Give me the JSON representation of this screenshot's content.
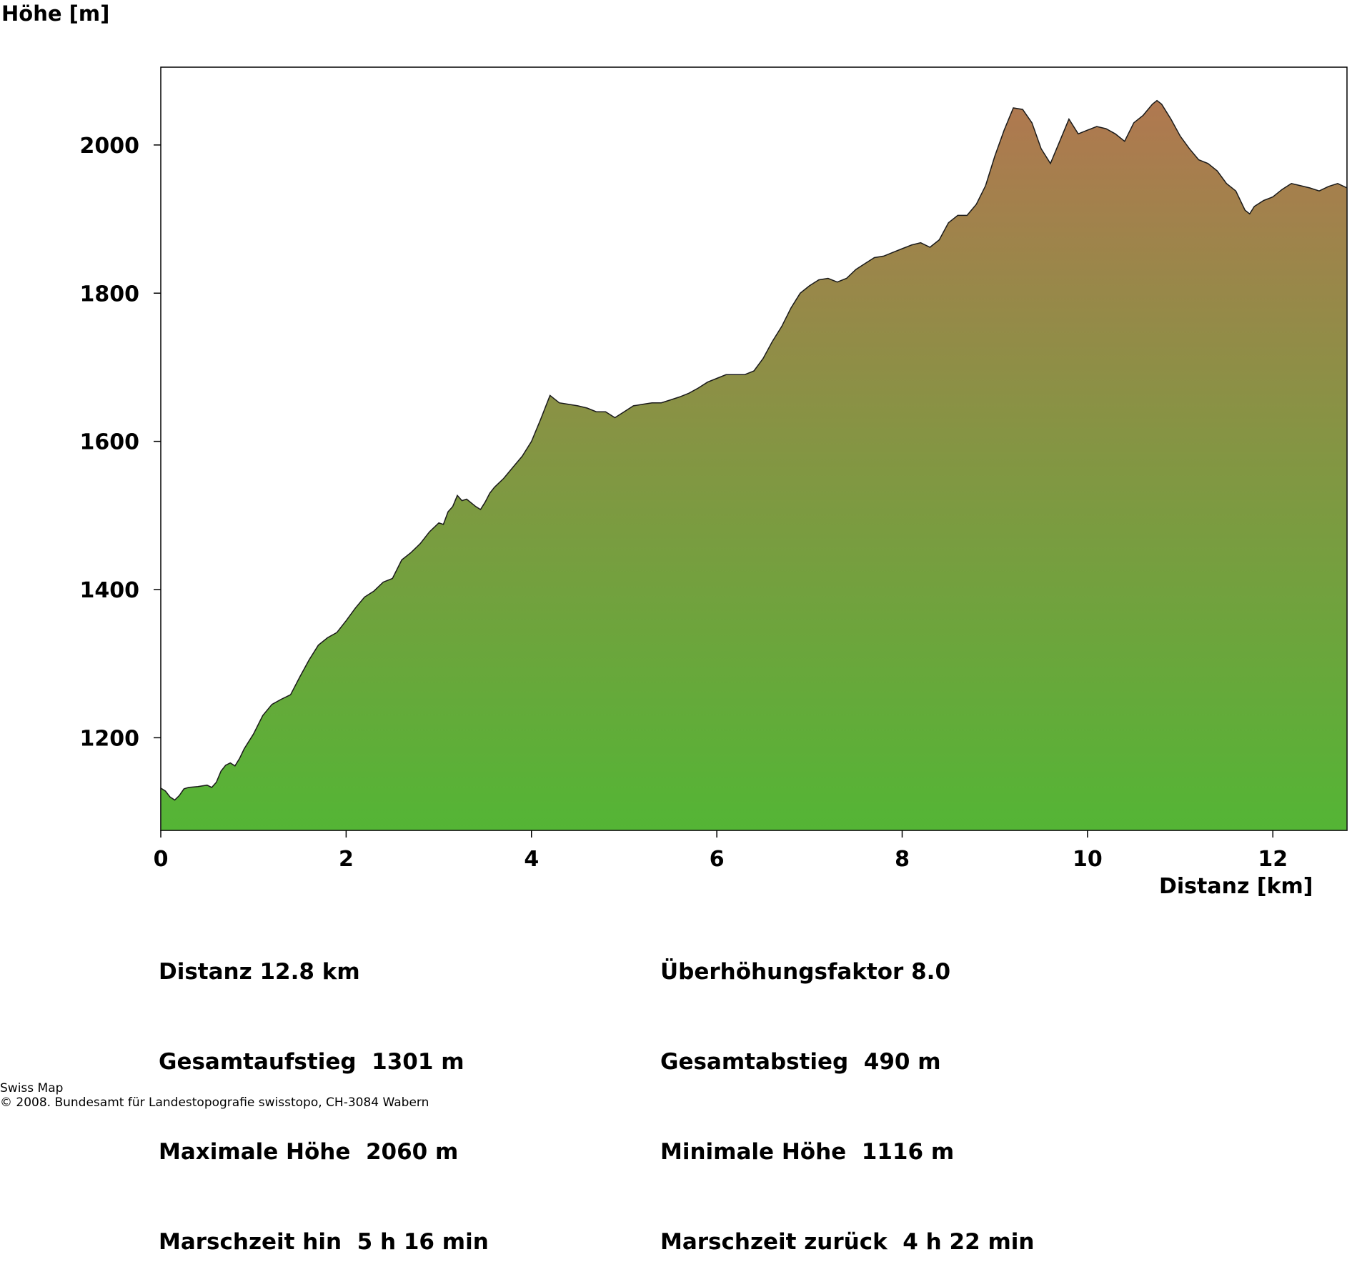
{
  "chart_data": {
    "type": "area",
    "ylabel": "Höhe [m]",
    "xlabel": "Distanz [km]",
    "xlim": [
      0,
      12.8
    ],
    "ylim": [
      1075,
      2105
    ],
    "x_ticks": [
      0,
      2,
      4,
      6,
      8,
      10,
      12
    ],
    "y_ticks": [
      1200,
      1400,
      1600,
      1800,
      2000
    ],
    "fill_gradient": {
      "top": "#b07850",
      "bottom": "#54b535"
    },
    "series": [
      {
        "x": [
          0,
          0.05,
          0.1,
          0.15,
          0.2,
          0.25,
          0.3,
          0.4,
          0.5,
          0.55,
          0.6,
          0.65,
          0.7,
          0.75,
          0.8,
          0.85,
          0.9,
          1.0,
          1.1,
          1.2,
          1.3,
          1.4,
          1.5,
          1.6,
          1.7,
          1.8,
          1.9,
          2.0,
          2.1,
          2.2,
          2.3,
          2.4,
          2.5,
          2.6,
          2.7,
          2.8,
          2.9,
          3.0,
          3.05,
          3.1,
          3.15,
          3.2,
          3.25,
          3.3,
          3.4,
          3.45,
          3.5,
          3.55,
          3.6,
          3.7,
          3.8,
          3.9,
          4.0,
          4.1,
          4.2,
          4.3,
          4.4,
          4.5,
          4.6,
          4.7,
          4.8,
          4.9,
          5.0,
          5.1,
          5.2,
          5.3,
          5.4,
          5.5,
          5.6,
          5.7,
          5.8,
          5.9,
          6.0,
          6.1,
          6.2,
          6.3,
          6.4,
          6.5,
          6.6,
          6.7,
          6.8,
          6.9,
          7.0,
          7.1,
          7.2,
          7.3,
          7.4,
          7.5,
          7.6,
          7.7,
          7.8,
          7.9,
          8.0,
          8.1,
          8.2,
          8.3,
          8.4,
          8.5,
          8.6,
          8.7,
          8.8,
          8.9,
          9.0,
          9.1,
          9.2,
          9.3,
          9.4,
          9.5,
          9.6,
          9.7,
          9.8,
          9.9,
          10.0,
          10.1,
          10.2,
          10.3,
          10.4,
          10.5,
          10.6,
          10.7,
          10.75,
          10.8,
          10.9,
          11.0,
          11.1,
          11.2,
          11.3,
          11.4,
          11.5,
          11.6,
          11.7,
          11.75,
          11.8,
          11.9,
          12.0,
          12.1,
          12.2,
          12.3,
          12.4,
          12.5,
          12.6,
          12.7,
          12.8
        ],
        "y": [
          1132,
          1128,
          1120,
          1116,
          1122,
          1131,
          1133,
          1134,
          1136,
          1133,
          1140,
          1155,
          1163,
          1166,
          1162,
          1172,
          1185,
          1205,
          1230,
          1245,
          1252,
          1258,
          1282,
          1305,
          1325,
          1335,
          1342,
          1358,
          1375,
          1390,
          1398,
          1410,
          1415,
          1440,
          1450,
          1462,
          1478,
          1490,
          1488,
          1505,
          1512,
          1527,
          1520,
          1522,
          1512,
          1508,
          1518,
          1530,
          1538,
          1550,
          1565,
          1580,
          1600,
          1630,
          1662,
          1652,
          1650,
          1648,
          1645,
          1640,
          1640,
          1632,
          1640,
          1648,
          1650,
          1652,
          1652,
          1656,
          1660,
          1665,
          1672,
          1680,
          1685,
          1690,
          1690,
          1690,
          1695,
          1712,
          1735,
          1755,
          1780,
          1800,
          1810,
          1818,
          1820,
          1815,
          1820,
          1832,
          1840,
          1848,
          1850,
          1855,
          1860,
          1865,
          1868,
          1862,
          1872,
          1895,
          1905,
          1905,
          1920,
          1945,
          1985,
          2020,
          2050,
          2048,
          2030,
          1995,
          1975,
          2005,
          2035,
          2015,
          2020,
          2025,
          2022,
          2015,
          2005,
          2030,
          2040,
          2055,
          2060,
          2055,
          2035,
          2012,
          1995,
          1980,
          1975,
          1965,
          1948,
          1938,
          1912,
          1907,
          1917,
          1925,
          1930,
          1940,
          1948,
          1945,
          1942,
          1938,
          1944,
          1948,
          1942
        ]
      }
    ]
  },
  "stats": {
    "left": [
      "Distanz 12.8 km",
      "Gesamtaufstieg  1301 m",
      "Maximale Höhe  2060 m",
      "Marschzeit hin  5 h 16 min"
    ],
    "right": [
      "Überhöhungsfaktor 8.0",
      "Gesamtabstieg  490 m",
      "Minimale Höhe  1116 m",
      "Marschzeit zurück  4 h 22 min"
    ]
  },
  "footer": {
    "line1": "Swiss Map",
    "line2": "© 2008. Bundesamt für Landestopografie swisstopo, CH-3084 Wabern"
  }
}
